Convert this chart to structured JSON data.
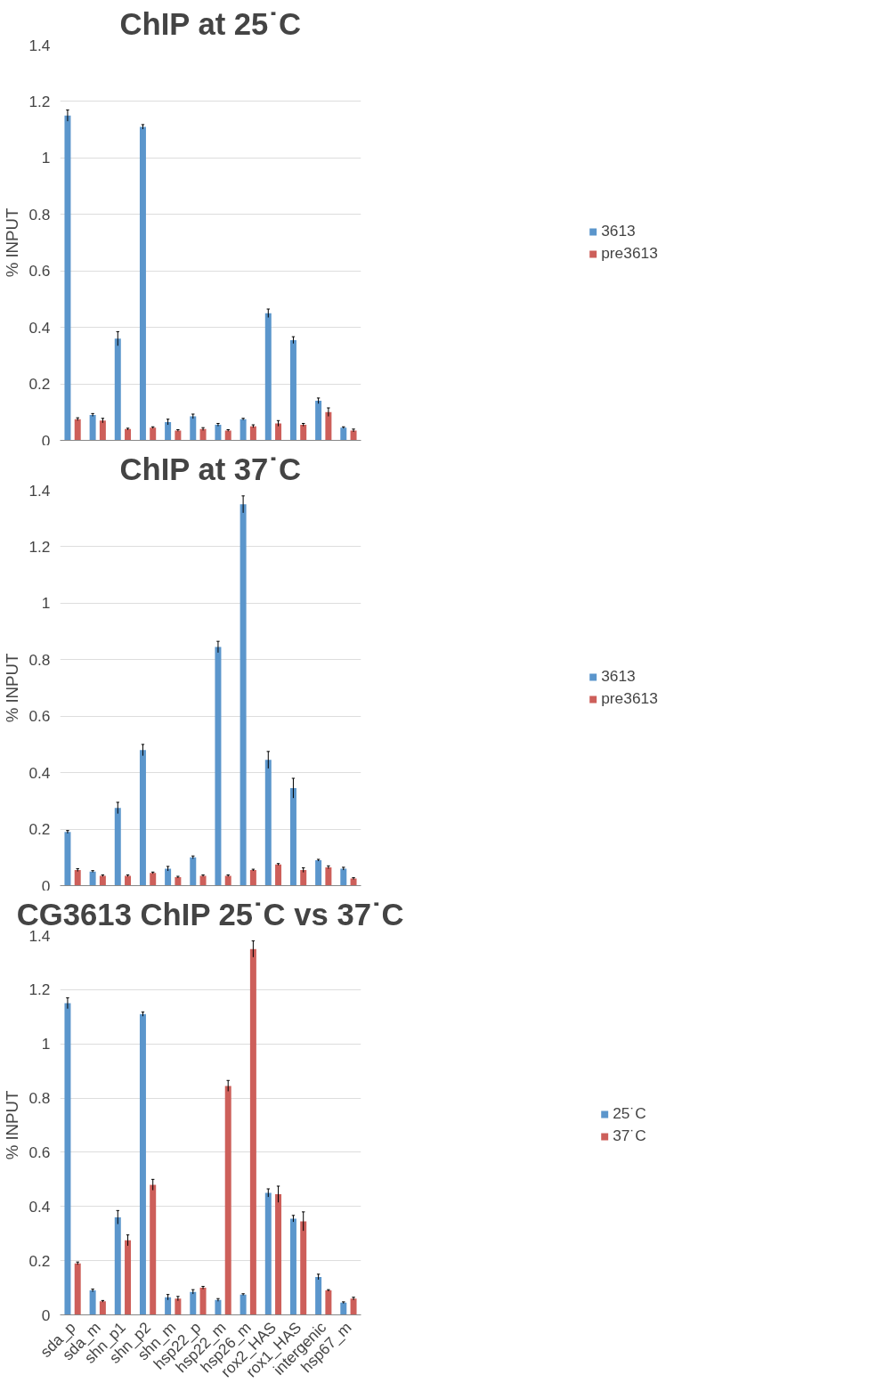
{
  "chart_data": [
    {
      "type": "bar",
      "title": "ChIP at 25˙C",
      "ylabel": "% INPUT",
      "categories": [
        null,
        null,
        null,
        null,
        null,
        null,
        null,
        null,
        null,
        null,
        null,
        null
      ],
      "ylim": [
        0,
        1.4
      ],
      "yticks": [
        0,
        0.2,
        0.4,
        0.6,
        0.8,
        1,
        1.2,
        1.4
      ],
      "grid": "y",
      "legend": "right",
      "tick_labels": "y",
      "series": [
        {
          "name": "3613",
          "color": "#5b96cc",
          "values": [
            1.15,
            0.09,
            0.36,
            1.11,
            0.065,
            0.085,
            0.055,
            0.075,
            0.45,
            0.355,
            0.14,
            0.045
          ],
          "errors": [
            0.02,
            0.005,
            0.025,
            0.008,
            0.01,
            0.008,
            0.005,
            0.003,
            0.015,
            0.012,
            0.01,
            0.003
          ]
        },
        {
          "name": "pre3613",
          "color": "#cd5f5a",
          "values": [
            0.075,
            0.07,
            0.04,
            0.045,
            0.035,
            0.04,
            0.035,
            0.05,
            0.06,
            0.055,
            0.1,
            0.035
          ],
          "errors": [
            0.005,
            0.008,
            0.003,
            0.003,
            0.003,
            0.005,
            0.003,
            0.005,
            0.01,
            0.005,
            0.015,
            0.005
          ]
        }
      ]
    },
    {
      "type": "bar",
      "title": "ChIP at 37˙C",
      "ylabel": "% INPUT",
      "categories": [
        null,
        null,
        null,
        null,
        null,
        null,
        null,
        null,
        null,
        null,
        null,
        null
      ],
      "ylim": [
        0,
        1.4
      ],
      "yticks": [
        0,
        0.2,
        0.4,
        0.6,
        0.8,
        1,
        1.2,
        1.4
      ],
      "grid": "y",
      "legend": "right",
      "tick_labels": "y",
      "series": [
        {
          "name": "3613",
          "color": "#5b96cc",
          "values": [
            0.19,
            0.05,
            0.275,
            0.48,
            0.06,
            0.1,
            0.845,
            1.35,
            0.445,
            0.345,
            0.09,
            0.06
          ],
          "errors": [
            0.005,
            0.003,
            0.02,
            0.02,
            0.008,
            0.005,
            0.02,
            0.03,
            0.03,
            0.035,
            0.003,
            0.005
          ]
        },
        {
          "name": "pre3613",
          "color": "#cd5f5a",
          "values": [
            0.055,
            0.035,
            0.035,
            0.045,
            0.03,
            0.035,
            0.035,
            0.055,
            0.075,
            0.055,
            0.065,
            0.025
          ],
          "errors": [
            0.005,
            0.003,
            0.003,
            0.003,
            0.003,
            0.003,
            0.003,
            0.003,
            0.003,
            0.008,
            0.005,
            0.003
          ]
        }
      ]
    },
    {
      "type": "bar",
      "title": "CG3613 ChIP 25˙C vs 37˙C",
      "ylabel": "% INPUT",
      "categories": [
        "sda_p",
        "sda_m",
        "shn_p1",
        "shn_p2",
        "shn_m",
        "hsp22_p",
        "hsp22_m",
        "hsp26_m",
        "rox2_HAS",
        "rox1_HAS",
        "intergenic",
        "hsp67_m"
      ],
      "ylim": [
        0,
        1.4
      ],
      "yticks": [
        0,
        0.2,
        0.4,
        0.6,
        0.8,
        1,
        1.2,
        1.4
      ],
      "grid": "y",
      "legend": "right",
      "series": [
        {
          "name": "25˙C",
          "color": "#5b96cc",
          "values": [
            1.15,
            0.09,
            0.36,
            1.11,
            0.065,
            0.085,
            0.055,
            0.075,
            0.45,
            0.355,
            0.14,
            0.045
          ],
          "errors": [
            0.02,
            0.005,
            0.025,
            0.008,
            0.01,
            0.008,
            0.005,
            0.003,
            0.015,
            0.012,
            0.01,
            0.003
          ]
        },
        {
          "name": "37˙C",
          "color": "#cd5f5a",
          "values": [
            0.19,
            0.05,
            0.275,
            0.48,
            0.06,
            0.1,
            0.845,
            1.35,
            0.445,
            0.345,
            0.09,
            0.06
          ],
          "errors": [
            0.005,
            0.003,
            0.02,
            0.02,
            0.008,
            0.005,
            0.02,
            0.03,
            0.03,
            0.035,
            0.003,
            0.005
          ]
        }
      ]
    }
  ]
}
